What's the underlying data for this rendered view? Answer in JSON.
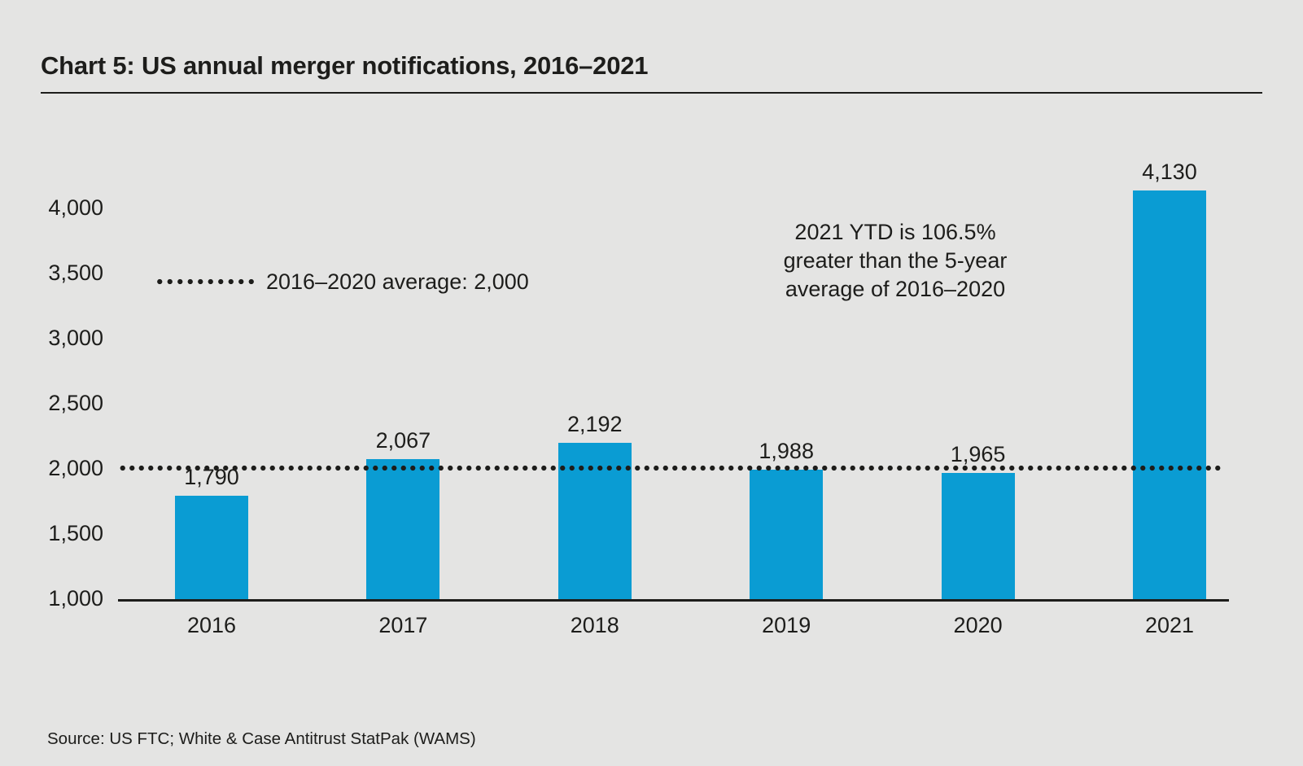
{
  "header": {
    "title": "Chart 5: US annual merger notifications, 2016–2021"
  },
  "chart_data": {
    "type": "bar",
    "title": "Chart 5: US annual merger notifications, 2016–2021",
    "categories": [
      "2016",
      "2017",
      "2018",
      "2019",
      "2020",
      "2021"
    ],
    "values": [
      1790,
      2067,
      2192,
      1988,
      1965,
      4130
    ],
    "value_labels": [
      "1,790",
      "2,067",
      "2,192",
      "1,988",
      "1,965",
      "4,130"
    ],
    "ylim": [
      1000,
      4000
    ],
    "y_ticks": [
      1000,
      1500,
      2000,
      2500,
      3000,
      3500,
      4000
    ],
    "y_tick_labels": [
      "1,000",
      "1,500",
      "2,000",
      "2,500",
      "3,000",
      "3,500",
      "4,000"
    ],
    "grid": false,
    "legend_position": "upper-left-inside",
    "bar_color": "#0a9cd3",
    "text_color": "#1d1d1b",
    "background_color": "#e4e4e3",
    "average_line": {
      "value": 2000,
      "style": "dotted",
      "color": "#1d1d1b",
      "legend_label": "2016–2020 average: 2,000"
    },
    "annotation": {
      "lines": [
        "2021 YTD is 106.5%",
        "greater than the 5-year",
        "average of 2016–2020"
      ]
    }
  },
  "footer": {
    "source": "Source: US FTC; White & Case Antitrust StatPak (WAMS)"
  }
}
